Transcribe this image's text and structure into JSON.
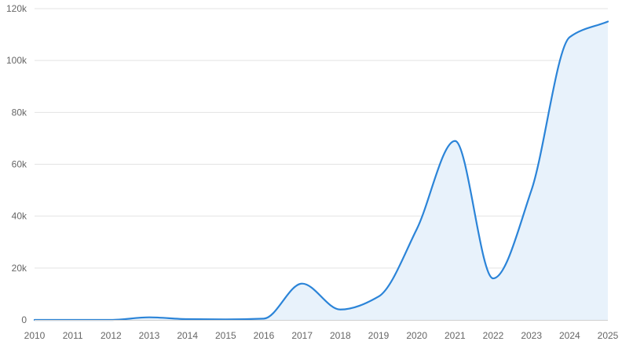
{
  "chart_data": {
    "type": "area",
    "title": "",
    "xlabel": "",
    "ylabel": "",
    "x": [
      2010,
      2011,
      2012,
      2013,
      2014,
      2015,
      2016,
      2017,
      2018,
      2019,
      2020,
      2021,
      2022,
      2023,
      2024,
      2025
    ],
    "x_tick_labels": [
      "2010",
      "2011",
      "2012",
      "2013",
      "2014",
      "2015",
      "2016",
      "2017",
      "2018",
      "2019",
      "2020",
      "2021",
      "2022",
      "2023",
      "2024",
      "2025"
    ],
    "series": [
      {
        "values": [
          0,
          0,
          0,
          1000,
          300,
          200,
          500,
          14000,
          4000,
          9000,
          35000,
          69000,
          16000,
          50000,
          109000,
          115000
        ],
        "color": "#2b84d8",
        "fill_color": "#e8f2fb"
      }
    ],
    "ylim": [
      0,
      120000
    ],
    "y_ticks": [
      0,
      20000,
      40000,
      60000,
      80000,
      100000,
      120000
    ],
    "y_tick_labels": [
      "0",
      "20k",
      "40k",
      "60k",
      "80k",
      "100k",
      "120k"
    ],
    "grid": true,
    "legend": "none"
  }
}
